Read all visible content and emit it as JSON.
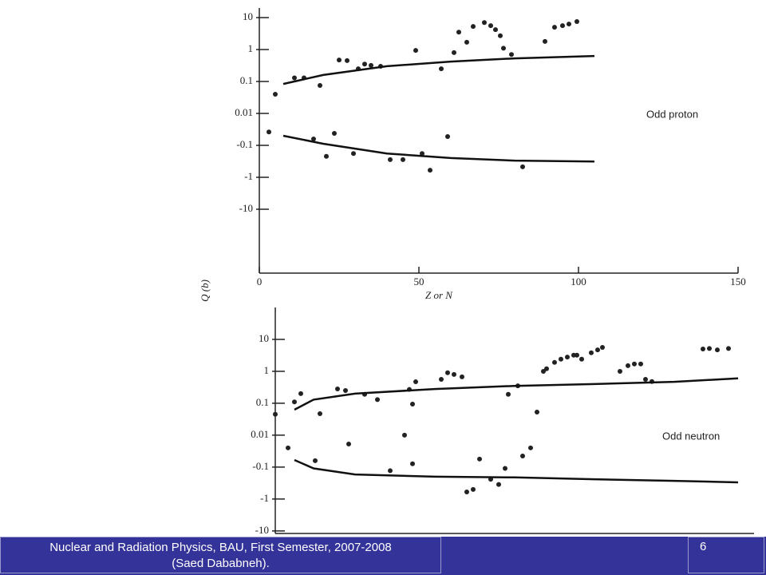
{
  "chart_data": [
    {
      "type": "scatter",
      "yscale": "symlog",
      "annotation": "Odd proton",
      "xlabel": "Z or N",
      "ylabel": "Q (b)",
      "xlim": [
        0,
        150
      ],
      "xticks": [
        0,
        50,
        100,
        150
      ],
      "ylim": [
        -1000,
        20
      ],
      "yticks": [
        10,
        1,
        0.1,
        0.01,
        -0.1,
        -1,
        -10
      ],
      "series": [
        {
          "style": "points",
          "color": "#222222",
          "x": [
            5,
            11,
            14,
            19,
            25,
            27.5,
            31,
            33,
            35,
            38,
            49,
            57,
            61,
            62.5,
            65,
            67,
            70.5,
            72.5,
            74,
            75.5,
            76.5,
            79,
            89.5,
            92.5,
            95,
            97,
            99.5
          ],
          "values": [
            0.04,
            0.13,
            0.13,
            0.075,
            0.47,
            0.45,
            0.25,
            0.35,
            0.32,
            0.3,
            0.94,
            0.25,
            0.8,
            3.5,
            1.7,
            5.3,
            7,
            5.6,
            4.2,
            2.7,
            1.1,
            0.7,
            1.8,
            5,
            5.6,
            6.3,
            7.5
          ]
        },
        {
          "style": "points",
          "color": "#222222",
          "x": [
            3,
            17,
            21,
            23.5,
            29.5,
            41,
            45,
            51,
            53.5,
            59,
            82.5
          ],
          "values": [
            -0.038,
            -0.063,
            -0.22,
            -0.042,
            -0.18,
            -0.28,
            -0.28,
            -0.18,
            -0.6,
            -0.053,
            -0.47
          ]
        },
        {
          "style": "line",
          "color": "#111111",
          "x": [
            7.5,
            20,
            40,
            60,
            80,
            105
          ],
          "values": [
            0.084,
            0.16,
            0.3,
            0.42,
            0.53,
            0.63
          ]
        },
        {
          "style": "line",
          "color": "#111111",
          "x": [
            7.5,
            20,
            40,
            60,
            80,
            105
          ],
          "values": [
            -0.05,
            -0.089,
            -0.18,
            -0.25,
            -0.3,
            -0.32
          ]
        }
      ]
    },
    {
      "type": "scatter",
      "yscale": "symlog",
      "annotation": "Odd neutron",
      "xlim": [
        0,
        150
      ],
      "ylim": [
        -12,
        100
      ],
      "yticks": [
        10,
        1,
        0.1,
        0.01,
        -0.1,
        -1,
        -10
      ],
      "series": [
        {
          "style": "points",
          "color": "#222222",
          "x": [
            0,
            6,
            8,
            14,
            19.5,
            22,
            28,
            32,
            42,
            44,
            43,
            52,
            54,
            56,
            58.5,
            73,
            76,
            82,
            84,
            85,
            87.5,
            89.5,
            91.5,
            93.5,
            94.5,
            96,
            99,
            101,
            102.5,
            108,
            110.5,
            112.5,
            114.5,
            116,
            118,
            134,
            136,
            138.5,
            142
          ],
          "values": [
            0.045,
            0.11,
            0.2,
            0.047,
            0.28,
            0.25,
            0.19,
            0.13,
            0.27,
            0.47,
            0.094,
            0.56,
            0.9,
            0.8,
            0.67,
            0.19,
            0.35,
            0.053,
            1.0,
            1.2,
            1.9,
            2.4,
            2.8,
            3.2,
            3.2,
            2.4,
            3.8,
            4.7,
            5.6,
            1.0,
            1.5,
            1.7,
            1.7,
            0.56,
            0.48,
            5,
            5.2,
            4.7,
            5.2
          ]
        },
        {
          "style": "points",
          "color": "#222222",
          "x": [
            4,
            12.5,
            23,
            36,
            40.5,
            43,
            60,
            62,
            64,
            67.5,
            70,
            72,
            77.5,
            80
          ],
          "values": [
            -0.025,
            -0.063,
            -0.019,
            -0.13,
            0.01,
            -0.079,
            -0.6,
            -0.5,
            -0.056,
            -0.24,
            -0.35,
            -0.11,
            -0.045,
            -0.025
          ]
        },
        {
          "style": "line",
          "color": "#111111",
          "x": [
            6,
            12,
            25,
            50,
            75,
            100,
            125,
            145
          ],
          "values": [
            0.063,
            0.13,
            0.2,
            0.28,
            0.35,
            0.4,
            0.47,
            0.6
          ]
        },
        {
          "style": "line",
          "color": "#111111",
          "x": [
            6,
            12,
            25,
            50,
            75,
            100,
            125,
            145
          ],
          "values": [
            -0.06,
            -0.11,
            -0.17,
            -0.2,
            -0.21,
            -0.24,
            -0.27,
            -0.3
          ]
        }
      ]
    }
  ],
  "footer": {
    "lines": [
      "Nuclear and Radiation Physics, BAU, First Semester, 2007-2008",
      "(Saed Dababneh)."
    ],
    "page": "6"
  }
}
